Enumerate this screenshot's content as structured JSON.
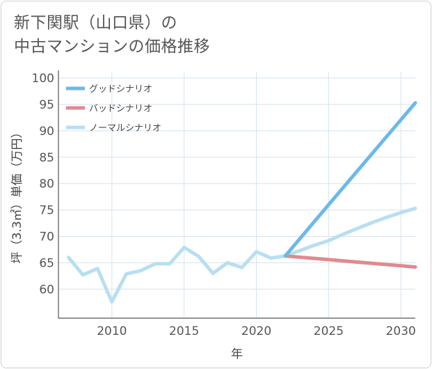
{
  "title_line1": "新下関駅（山口県）の",
  "title_line2": "中古マンションの価格推移",
  "colors": {
    "good": "#6cb8ea",
    "bad": "#e08a8f",
    "normal": "#b8dff0",
    "grid": "#d5e3ee",
    "axis": "#555555"
  },
  "chart_data": {
    "type": "line",
    "xlabel": "年",
    "ylabel": "坪（3.3㎡）単価（万円）",
    "xlim": [
      2006.3,
      2031
    ],
    "ylim": [
      54.5,
      101.2
    ],
    "xticks": [
      2010,
      2015,
      2020,
      2025,
      2030
    ],
    "yticks": [
      60,
      65,
      70,
      75,
      80,
      85,
      90,
      95,
      100
    ],
    "grid": true,
    "legend_position": "top-left",
    "series": [
      {
        "name": "グッドシナリオ",
        "color_key": "good",
        "x": [
          2022,
          2025,
          2031
        ],
        "y": [
          66.3,
          76,
          95.3
        ]
      },
      {
        "name": "バッドシナリオ",
        "color_key": "bad",
        "x": [
          2022,
          2025,
          2031
        ],
        "y": [
          66.3,
          65.6,
          64.2
        ]
      },
      {
        "name": "ノーマルシナリオ",
        "color_key": "normal",
        "x": [
          2007,
          2008,
          2009,
          2010,
          2011,
          2012,
          2013,
          2014,
          2015,
          2016,
          2017,
          2018,
          2019,
          2020,
          2021,
          2022,
          2023,
          2024,
          2025,
          2026,
          2027,
          2028,
          2029,
          2030,
          2031
        ],
        "y": [
          66.0,
          62.7,
          63.9,
          57.6,
          62.9,
          63.5,
          64.8,
          64.8,
          67.9,
          66.2,
          63.0,
          65.0,
          64.1,
          67.1,
          65.9,
          66.3,
          67.3,
          68.3,
          69.2,
          70.4,
          71.5,
          72.6,
          73.6,
          74.5,
          75.3
        ]
      }
    ]
  }
}
